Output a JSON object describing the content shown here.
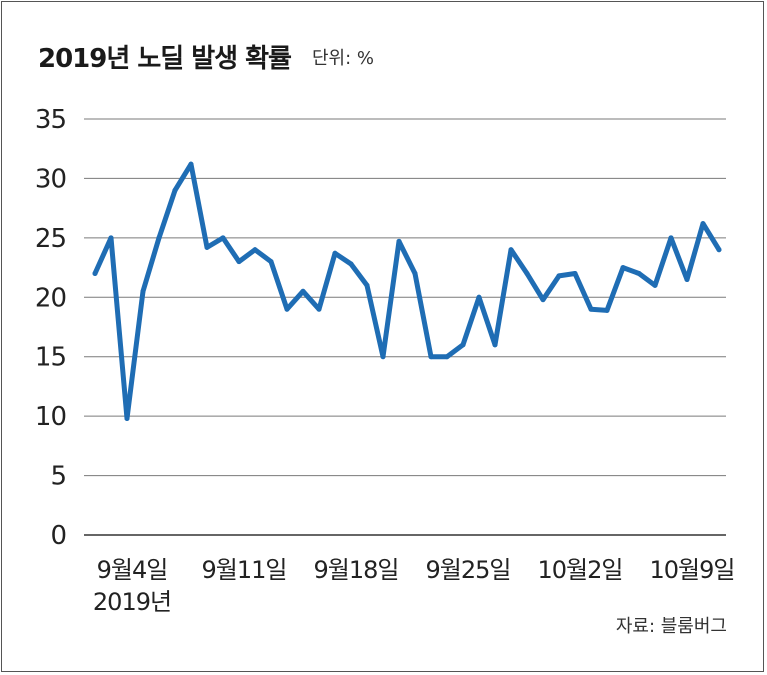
{
  "title": "2019년 노딜 발생 확률",
  "unit": "단위: %",
  "source": "자료: 블룸버그",
  "colors": {
    "line": "#1f6db4",
    "grid": "#7a7a7a",
    "text": "#222222"
  },
  "chart_data": {
    "type": "line",
    "title": "2019년 노딜 발생 확률",
    "ylim": [
      0,
      35
    ],
    "yticks": [
      0,
      5,
      10,
      15,
      20,
      25,
      30,
      35
    ],
    "grid": true,
    "xticks": [
      {
        "label": "9월4일",
        "sub": "2019년",
        "index": 0
      },
      {
        "label": "9월11일",
        "index": 7
      },
      {
        "label": "9월18일",
        "index": 14
      },
      {
        "label": "9월25일",
        "index": 21
      },
      {
        "label": "10월2일",
        "index": 28
      },
      {
        "label": "10월9일",
        "index": 35
      }
    ],
    "series": [
      {
        "values": [
          22.0,
          25.0,
          9.8,
          20.5,
          25.0,
          29.0,
          31.2,
          24.2,
          25.0,
          23.0,
          24.0,
          23.0,
          19.0,
          20.5,
          19.0,
          23.7,
          22.8,
          21.0,
          15.0,
          24.7,
          22.0,
          15.0,
          15.0,
          16.0,
          20.0,
          16.0,
          24.0,
          22.0,
          19.8,
          21.8,
          22.0,
          19.0,
          18.9,
          22.5,
          22.0,
          21.0,
          25.0,
          21.5,
          26.2,
          24.0
        ]
      }
    ]
  }
}
